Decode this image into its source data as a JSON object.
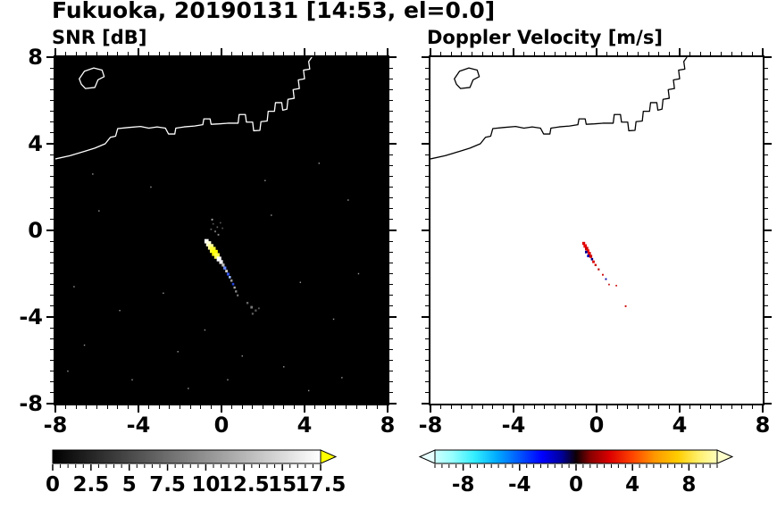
{
  "title": "Fukuoka, 20190131 [14:53, el=0.0]",
  "panels": [
    {
      "title": "SNR [dB]",
      "bg": "#000000",
      "coast_color": "#ffffff",
      "frame_color": "#000000"
    },
    {
      "title": "Doppler Velocity [m/s]",
      "bg": "#ffffff",
      "coast_color": "#000000",
      "frame_color": "#000000"
    }
  ],
  "axes": {
    "xlim": [
      -8,
      8
    ],
    "ylim": [
      -8,
      8
    ],
    "major_ticks": [
      -8,
      -4,
      0,
      4,
      8
    ],
    "minor_step": 0.5,
    "x_tick_labels": [
      "-8",
      "-4",
      "0",
      "4",
      "8"
    ],
    "y_ticks": [
      8,
      4,
      0,
      -4,
      -8
    ],
    "y_tick_labels": [
      "8",
      "4",
      "0",
      "-4",
      "-8"
    ]
  },
  "coastline": {
    "main": [
      [
        -8.0,
        3.3
      ],
      [
        -7.3,
        3.45
      ],
      [
        -6.6,
        3.65
      ],
      [
        -6.1,
        3.8
      ],
      [
        -5.6,
        4.0
      ],
      [
        -5.35,
        4.3
      ],
      [
        -5.1,
        4.35
      ],
      [
        -5.0,
        4.7
      ],
      [
        -4.5,
        4.75
      ],
      [
        -3.9,
        4.8
      ],
      [
        -3.5,
        4.72
      ],
      [
        -3.1,
        4.78
      ],
      [
        -2.7,
        4.72
      ],
      [
        -2.55,
        4.45
      ],
      [
        -2.25,
        4.45
      ],
      [
        -2.2,
        4.72
      ],
      [
        -1.8,
        4.78
      ],
      [
        -1.3,
        4.82
      ],
      [
        -0.9,
        4.88
      ],
      [
        -0.85,
        5.15
      ],
      [
        -0.55,
        5.15
      ],
      [
        -0.5,
        4.9
      ],
      [
        -0.1,
        4.92
      ],
      [
        0.3,
        4.95
      ],
      [
        0.8,
        4.95
      ],
      [
        0.85,
        5.35
      ],
      [
        1.15,
        5.35
      ],
      [
        1.2,
        5.0
      ],
      [
        1.5,
        5.0
      ],
      [
        1.55,
        4.6
      ],
      [
        1.85,
        4.62
      ],
      [
        1.9,
        5.02
      ],
      [
        2.2,
        5.05
      ],
      [
        2.25,
        5.5
      ],
      [
        2.55,
        5.5
      ],
      [
        2.6,
        5.9
      ],
      [
        2.9,
        5.9
      ],
      [
        2.95,
        5.55
      ],
      [
        3.15,
        5.6
      ],
      [
        3.2,
        6.05
      ],
      [
        3.5,
        6.1
      ],
      [
        3.45,
        6.5
      ],
      [
        3.75,
        6.55
      ],
      [
        3.7,
        6.95
      ],
      [
        4.0,
        7.0
      ],
      [
        3.95,
        7.4
      ],
      [
        4.25,
        7.45
      ],
      [
        4.2,
        7.8
      ],
      [
        4.35,
        8.0
      ]
    ],
    "island": [
      [
        -6.85,
        7.0
      ],
      [
        -6.6,
        7.35
      ],
      [
        -6.15,
        7.5
      ],
      [
        -5.75,
        7.4
      ],
      [
        -5.65,
        7.1
      ],
      [
        -5.95,
        6.95
      ],
      [
        -6.1,
        6.6
      ],
      [
        -6.55,
        6.55
      ],
      [
        -6.75,
        6.75
      ]
    ]
  },
  "chart_data": [
    {
      "type": "heatmap",
      "title": "SNR [dB]",
      "xlabel": "",
      "ylabel": "",
      "xlim": [
        -8,
        8
      ],
      "ylim": [
        -8,
        8
      ],
      "x_ticks": [
        -8,
        -4,
        0,
        4,
        8
      ],
      "y_ticks": [
        -8,
        -4,
        0,
        4,
        8
      ],
      "background": "#000000",
      "colorbar": {
        "range": [
          0,
          17.5
        ],
        "ticks": [
          0,
          2.5,
          5,
          7.5,
          10,
          12.5,
          15,
          17.5
        ],
        "colormap": "grayscale",
        "over_arrow_color": "#ffff00"
      },
      "points": [
        [
          -0.72,
          -0.5,
          "#ffffff",
          0.2
        ],
        [
          -0.62,
          -0.62,
          "#ffffdd",
          0.24
        ],
        [
          -0.52,
          -0.76,
          "#ffff99",
          0.26
        ],
        [
          -0.42,
          -0.9,
          "#ffff33",
          0.28
        ],
        [
          -0.32,
          -1.04,
          "#ffff00",
          0.28
        ],
        [
          -0.22,
          -1.18,
          "#ffff44",
          0.26
        ],
        [
          -0.12,
          -1.32,
          "#ffffff",
          0.22
        ],
        [
          -0.02,
          -1.46,
          "#eeeeee",
          0.18
        ],
        [
          0.08,
          -1.6,
          "#bbbbbb",
          0.14
        ],
        [
          0.16,
          -1.74,
          "#6688ff",
          0.14
        ],
        [
          0.24,
          -1.88,
          "#cccccc",
          0.12
        ],
        [
          0.32,
          -2.02,
          "#3355ee",
          0.13
        ],
        [
          0.4,
          -2.16,
          "#99bbff",
          0.11
        ],
        [
          0.48,
          -2.32,
          "#999999",
          0.11
        ],
        [
          0.56,
          -2.48,
          "#2244dd",
          0.11
        ],
        [
          0.63,
          -2.64,
          "#aaaaaa",
          0.1
        ],
        [
          0.7,
          -2.82,
          "#888888",
          0.1
        ],
        [
          0.78,
          -3.0,
          "#777777",
          0.09
        ],
        [
          1.25,
          -3.35,
          "#666666",
          0.1
        ],
        [
          1.45,
          -3.55,
          "#777777",
          0.12
        ],
        [
          1.65,
          -3.7,
          "#555555",
          0.1
        ],
        [
          1.5,
          -3.85,
          "#666666",
          0.09
        ],
        [
          1.8,
          -3.6,
          "#555555",
          0.08
        ],
        [
          -0.4,
          0.3,
          "#555555",
          0.07
        ],
        [
          -0.2,
          0.15,
          "#666666",
          0.07
        ],
        [
          -0.05,
          0.35,
          "#555555",
          0.07
        ],
        [
          -0.3,
          -0.05,
          "#777777",
          0.08
        ],
        [
          -0.15,
          -0.2,
          "#888888",
          0.08
        ],
        [
          0.05,
          0.1,
          "#555555",
          0.07
        ],
        [
          -0.5,
          0.05,
          "#666666",
          0.07
        ],
        [
          -0.45,
          0.5,
          "#aaaaaa",
          0.08
        ],
        [
          -6.6,
          -5.3,
          "#999999",
          0.06
        ],
        [
          -4.3,
          -6.9,
          "#999999",
          0.06
        ],
        [
          -2.1,
          -5.6,
          "#999999",
          0.06
        ],
        [
          3.0,
          -6.3,
          "#999999",
          0.06
        ],
        [
          5.4,
          -4.1,
          "#999999",
          0.06
        ],
        [
          6.1,
          1.4,
          "#999999",
          0.06
        ],
        [
          4.7,
          3.1,
          "#999999",
          0.06
        ],
        [
          -5.9,
          0.9,
          "#999999",
          0.06
        ],
        [
          -7.1,
          -2.6,
          "#999999",
          0.06
        ],
        [
          2.4,
          0.7,
          "#999999",
          0.06
        ],
        [
          -3.4,
          2.0,
          "#999999",
          0.06
        ],
        [
          5.8,
          -6.8,
          "#999999",
          0.06
        ],
        [
          -1.6,
          -7.3,
          "#999999",
          0.06
        ],
        [
          1.0,
          -5.8,
          "#999999",
          0.06
        ],
        [
          -4.9,
          -3.7,
          "#999999",
          0.06
        ],
        [
          3.8,
          -2.4,
          "#999999",
          0.06
        ],
        [
          6.6,
          -2.0,
          "#999999",
          0.06
        ],
        [
          -6.2,
          2.6,
          "#999999",
          0.06
        ],
        [
          -0.8,
          -4.6,
          "#999999",
          0.06
        ],
        [
          2.1,
          2.3,
          "#999999",
          0.06
        ],
        [
          4.2,
          -7.4,
          "#999999",
          0.06
        ],
        [
          -7.4,
          -6.5,
          "#999999",
          0.06
        ],
        [
          0.3,
          -6.9,
          "#999999",
          0.06
        ],
        [
          -2.8,
          -2.9,
          "#999999",
          0.06
        ]
      ]
    },
    {
      "type": "heatmap",
      "title": "Doppler Velocity [m/s]",
      "xlabel": "",
      "ylabel": "",
      "xlim": [
        -8,
        8
      ],
      "ylim": [
        -8,
        8
      ],
      "x_ticks": [
        -8,
        -4,
        0,
        4,
        8
      ],
      "y_ticks": [
        -8,
        -4,
        0,
        4,
        8
      ],
      "background": "#ffffff",
      "colorbar": {
        "range": [
          -10,
          10
        ],
        "ticks": [
          -8,
          -4,
          0,
          4,
          8
        ],
        "colormap": "cyan-blue-darkcenter-red-yellow"
      },
      "points": [
        [
          -0.62,
          -0.6,
          "#dd0000",
          0.14
        ],
        [
          -0.55,
          -0.72,
          "#ee0000",
          0.16
        ],
        [
          -0.48,
          -0.84,
          "#cc0000",
          0.16
        ],
        [
          -0.42,
          -0.95,
          "#ee1100",
          0.15
        ],
        [
          -0.5,
          -1.0,
          "#000099",
          0.12
        ],
        [
          -0.35,
          -1.07,
          "#dd0000",
          0.15
        ],
        [
          -0.4,
          -1.18,
          "#0000bb",
          0.12
        ],
        [
          -0.28,
          -1.2,
          "#cc0000",
          0.14
        ],
        [
          -0.22,
          -1.33,
          "#000088",
          0.11
        ],
        [
          -0.15,
          -1.45,
          "#dd0000",
          0.12
        ],
        [
          -0.05,
          -1.6,
          "#cc0000",
          0.1
        ],
        [
          0.1,
          -1.8,
          "#bb0000",
          0.09
        ],
        [
          0.3,
          -2.05,
          "#cc0000",
          0.08
        ],
        [
          0.45,
          -2.25,
          "#0000aa",
          0.08
        ],
        [
          0.6,
          -2.5,
          "#bb0000",
          0.07
        ],
        [
          0.95,
          -2.55,
          "#cc0000",
          0.07
        ],
        [
          1.4,
          -3.5,
          "#cc0000",
          0.08
        ]
      ]
    }
  ],
  "colorbars": [
    {
      "labels": [
        "0",
        "2.5",
        "5",
        "7.5",
        "10",
        "12.5",
        "15",
        "17.5"
      ],
      "tick_values": [
        0,
        2.5,
        5,
        7.5,
        10,
        12.5,
        15,
        17.5
      ],
      "tick_range": [
        0,
        17.5
      ],
      "minor_divs": 35,
      "gradient": [
        [
          0,
          "#000000"
        ],
        [
          1,
          "#ffffff"
        ]
      ],
      "arrow_left": null,
      "arrow_right": "#ffff00"
    },
    {
      "labels": [
        "-8",
        "-4",
        "0",
        "4",
        "8"
      ],
      "tick_values": [
        -8,
        -4,
        0,
        4,
        8
      ],
      "tick_range": [
        -10,
        10
      ],
      "minor_divs": 40,
      "gradient": [
        [
          0,
          "#ccffff"
        ],
        [
          0.06,
          "#99ffff"
        ],
        [
          0.14,
          "#33eeff"
        ],
        [
          0.22,
          "#00aaff"
        ],
        [
          0.3,
          "#0055ff"
        ],
        [
          0.38,
          "#0000ff"
        ],
        [
          0.45,
          "#000099"
        ],
        [
          0.5,
          "#0d0005"
        ],
        [
          0.55,
          "#880000"
        ],
        [
          0.62,
          "#dd0000"
        ],
        [
          0.7,
          "#ff4400"
        ],
        [
          0.78,
          "#ff9900"
        ],
        [
          0.86,
          "#ffcc00"
        ],
        [
          0.93,
          "#ffee66"
        ],
        [
          1,
          "#ffffbb"
        ]
      ],
      "arrow_left": "#e8ffff",
      "arrow_right": "#ffffcc"
    }
  ]
}
